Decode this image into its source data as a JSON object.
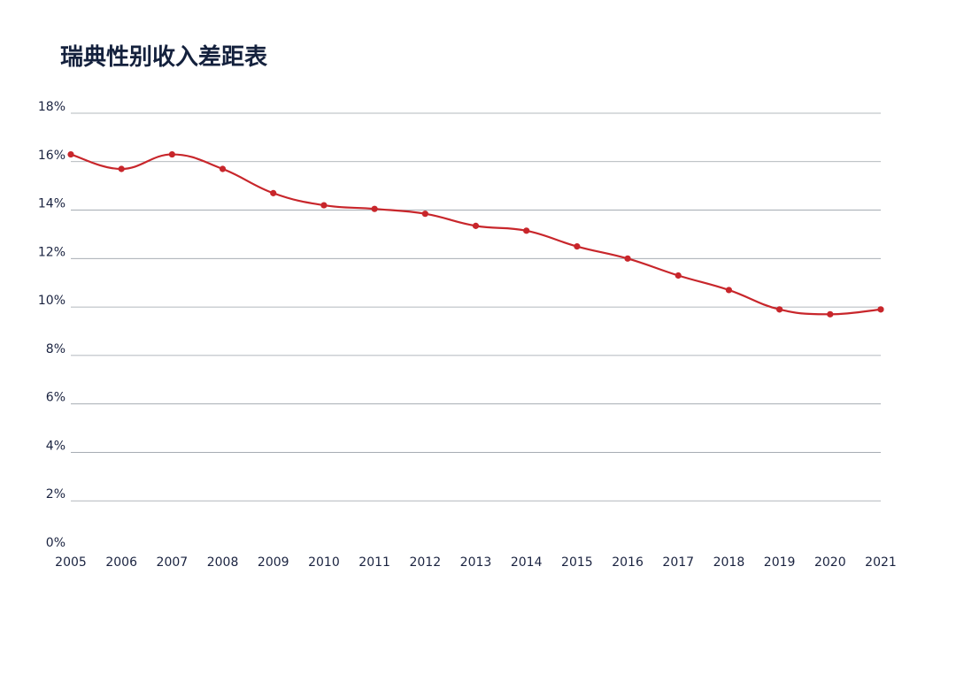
{
  "chart_data": {
    "type": "line",
    "title": "瑞典性别收入差距表",
    "xlabel": "",
    "ylabel": "",
    "x": [
      "2005",
      "2006",
      "2007",
      "2008",
      "2009",
      "2010",
      "2011",
      "2012",
      "2013",
      "2014",
      "2015",
      "2016",
      "2017",
      "2018",
      "2019",
      "2020",
      "2021"
    ],
    "series": [
      {
        "values": [
          16.3,
          15.7,
          16.3,
          15.7,
          14.7,
          14.2,
          14.05,
          13.85,
          13.35,
          13.15,
          12.5,
          12.0,
          11.3,
          10.7,
          9.9,
          9.7,
          9.9
        ]
      }
    ],
    "ylim": [
      0,
      18
    ],
    "yticks": [
      0,
      2,
      4,
      6,
      8,
      10,
      12,
      14,
      16,
      18
    ],
    "ytick_labels": [
      "0%",
      "2%",
      "4%",
      "6%",
      "8%",
      "10%",
      "12%",
      "14%",
      "16%",
      "18%"
    ],
    "grid": true,
    "legend": "none",
    "colors": {
      "line": "#c8262b",
      "grid": "#9aa0a8",
      "text": "#1a2340",
      "title": "#14213d"
    }
  }
}
